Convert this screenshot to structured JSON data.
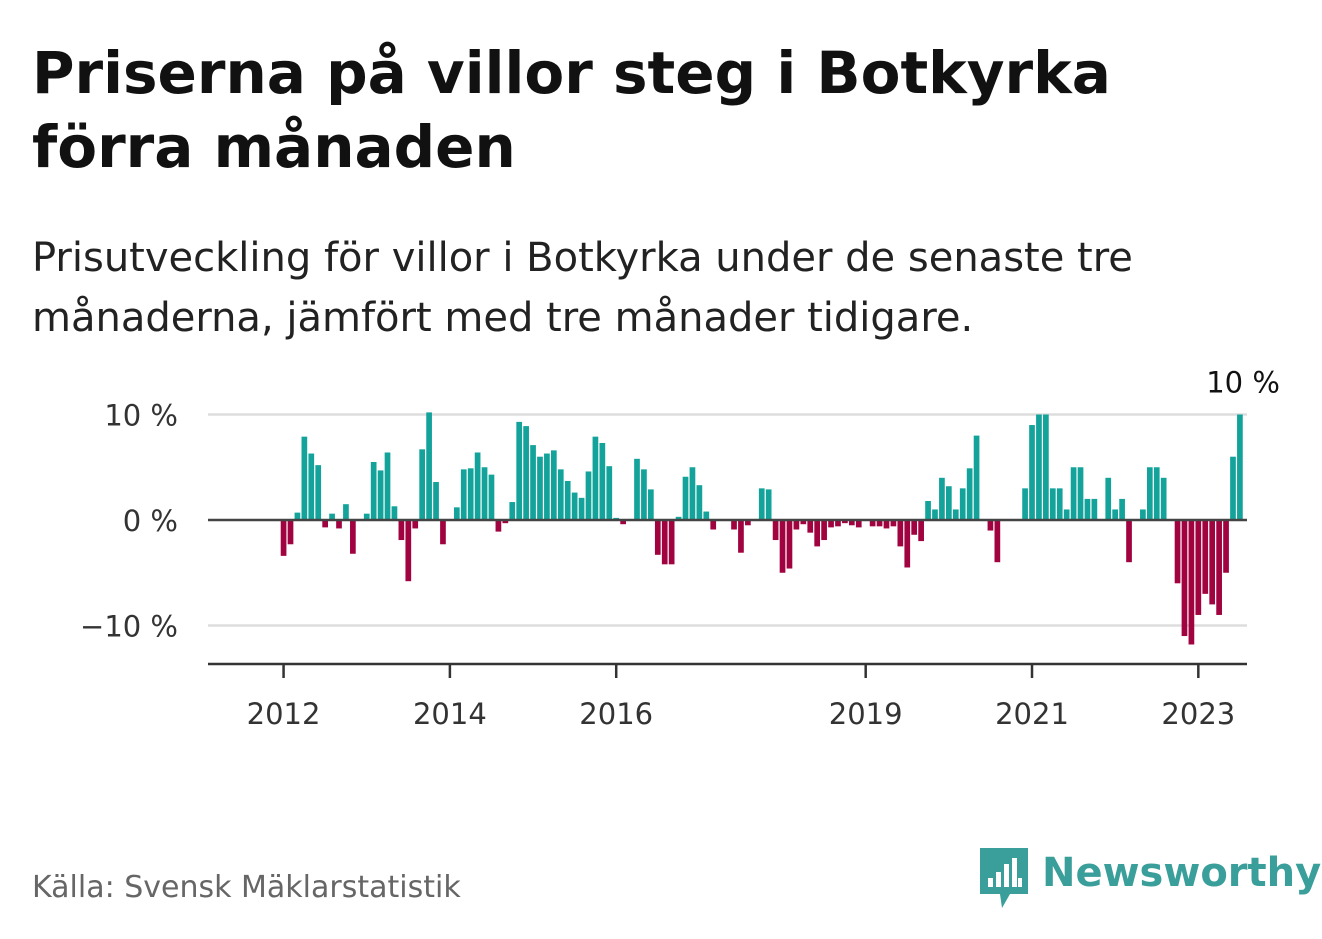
{
  "title": "Priserna på villor steg i Botkyrka förra månaden",
  "subtitle": "Prisutveckling för villor i Botkyrka under de senaste tre månaderna, jämfört med tre månader tidigare.",
  "source": "Källa: Svensk Mäklarstatistik",
  "brand": {
    "name": "Newsworthy",
    "icon": "newsworthy-logo-icon",
    "color": "#3a9e9a"
  },
  "colors": {
    "positive": "#13a39b",
    "negative": "#a0033f",
    "gridline": "#dddddd",
    "zero_line": "#444444",
    "axis": "#333333"
  },
  "chart_data": {
    "type": "bar",
    "title": "",
    "xlabel": "",
    "ylabel": "",
    "ylim": [
      -13.5,
      10
    ],
    "x_start": "2011-09",
    "frequency": "monthly",
    "y_ticks": [
      {
        "value": 10,
        "label": "10 %"
      },
      {
        "value": 0,
        "label": "0 %"
      },
      {
        "value": -10,
        "label": "−10 %"
      }
    ],
    "x_ticks": [
      {
        "value": "2012-01",
        "label": "2012"
      },
      {
        "value": "2014-01",
        "label": "2014"
      },
      {
        "value": "2016-01",
        "label": "2016"
      },
      {
        "value": "2019-01",
        "label": "2019"
      },
      {
        "value": "2021-01",
        "label": "2021"
      },
      {
        "value": "2023-01",
        "label": "2023"
      }
    ],
    "annotation": {
      "label": "10 %",
      "target": "last"
    },
    "series": [
      {
        "name": "Prisutveckling",
        "values": [
          0,
          0,
          0,
          0,
          -3.4,
          -2.3,
          0.7,
          7.9,
          6.3,
          5.2,
          -0.7,
          0.6,
          -0.8,
          1.5,
          -3.2,
          0,
          0.6,
          5.5,
          4.7,
          6.4,
          1.3,
          -1.9,
          -5.8,
          -0.8,
          6.7,
          10.2,
          3.6,
          -2.3,
          0,
          1.2,
          4.8,
          4.9,
          6.4,
          5,
          4.3,
          -1.1,
          -0.3,
          1.7,
          9.3,
          8.9,
          7.1,
          6,
          6.3,
          6.6,
          4.8,
          3.7,
          2.6,
          2.1,
          4.6,
          7.9,
          7.3,
          5.1,
          0.2,
          -0.4,
          0.1,
          5.8,
          4.8,
          2.9,
          -3.3,
          -4.2,
          -4.2,
          0.3,
          4.1,
          5,
          3.3,
          0.8,
          -0.9,
          0,
          0,
          -0.9,
          -3.1,
          -0.5,
          0,
          3,
          2.9,
          -1.9,
          -5,
          -4.6,
          -0.9,
          -0.4,
          -1.2,
          -2.5,
          -1.9,
          -0.7,
          -0.6,
          -0.3,
          -0.5,
          -0.7,
          0,
          -0.6,
          -0.6,
          -0.8,
          -0.6,
          -2.5,
          -4.5,
          -1.4,
          -2,
          1.8,
          1,
          4,
          3.2,
          1,
          3,
          4.9,
          8,
          0,
          -1,
          -4,
          0,
          0,
          0,
          3,
          9,
          10,
          10,
          3,
          3,
          1,
          5,
          5,
          2,
          2,
          0,
          4,
          1,
          2,
          -4,
          0,
          1,
          5,
          5,
          4,
          0,
          -6,
          -11,
          -11.8,
          -9,
          -7,
          -8,
          -9,
          -5,
          6,
          10
        ]
      }
    ]
  }
}
